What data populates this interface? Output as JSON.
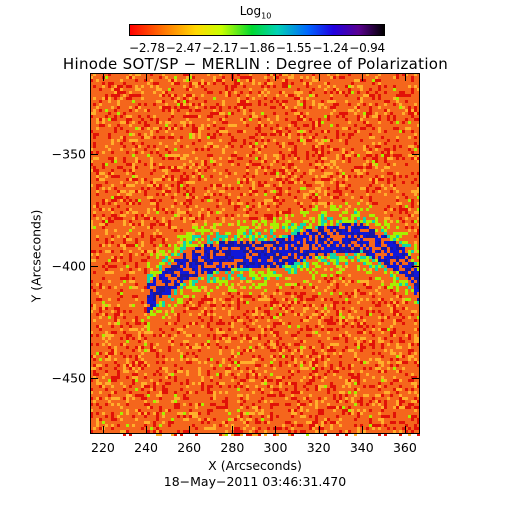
{
  "figure": {
    "title": "Hinode SOT/SP − MERLIN : Degree of Polarization",
    "colorbar": {
      "title": "Log",
      "title_subscript": "10",
      "tick_labels": [
        "−2.78",
        "−2.47",
        "−2.17",
        "−1.86",
        "−1.55",
        "−1.24",
        "−0.94"
      ],
      "range": [
        -2.78,
        -0.94
      ],
      "colormap": [
        "#ff0000",
        "#ff7a00",
        "#ffd800",
        "#c8ff00",
        "#00d830",
        "#00d2b4",
        "#0066ff",
        "#2000e0",
        "#5a0090",
        "#000000"
      ]
    },
    "x_axis": {
      "label": "X (Arcseconds)",
      "range": [
        214,
        367
      ],
      "tick_values": [
        220,
        240,
        260,
        280,
        300,
        320,
        340,
        360
      ],
      "tick_labels": [
        "220",
        "240",
        "260",
        "280",
        "300",
        "320",
        "340",
        "360"
      ]
    },
    "y_axis": {
      "label": "Y (Arcseconds)",
      "range": [
        -475,
        -314
      ],
      "tick_values": [
        -350,
        -400,
        -450
      ],
      "tick_labels": [
        "−350",
        "−400",
        "−450"
      ]
    },
    "timestamp": "18−May−2011 03:46:31.470",
    "map_colors": {
      "background": "#f5661c",
      "speckle_dark": "#e11208",
      "speckle_light": "#ffb02c",
      "green": "#a8f000",
      "cyan": "#10d8a8",
      "blue": "#1018d8",
      "navy": "#1818a0"
    }
  }
}
